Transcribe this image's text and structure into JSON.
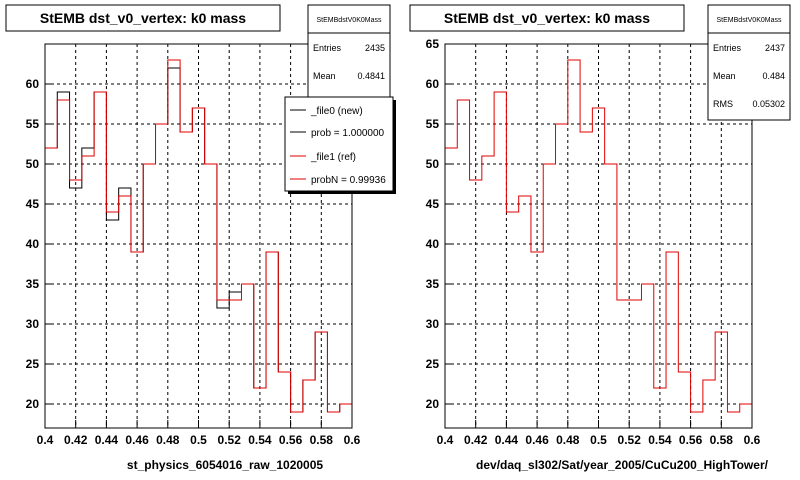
{
  "colors": {
    "new": "#000000",
    "ref": "#e00000"
  },
  "chart_data": [
    {
      "type": "histogram",
      "title": "StEMB dst_v0_vertex: k0 mass",
      "xlabel": "st_physics_6054016_raw_1020005",
      "xlim": [
        0.4,
        0.6
      ],
      "ylim": [
        17,
        65
      ],
      "xticks": [
        "0.4",
        "0.42",
        "0.44",
        "0.46",
        "0.48",
        "0.5",
        "0.52",
        "0.54",
        "0.56",
        "0.58",
        "0.6"
      ],
      "yticks": [
        "20",
        "25",
        "30",
        "35",
        "40",
        "45",
        "50",
        "55",
        "60"
      ],
      "grid": true,
      "bin_edges": [
        0.4,
        0.408,
        0.416,
        0.424,
        0.432,
        0.44,
        0.448,
        0.456,
        0.464,
        0.472,
        0.48,
        0.488,
        0.496,
        0.504,
        0.512,
        0.52,
        0.528,
        0.536,
        0.544,
        0.552,
        0.56,
        0.568,
        0.576,
        0.584,
        0.592,
        0.6
      ],
      "series": [
        {
          "name": "_file0 (new)",
          "color": "#000000",
          "values": [
            52,
            59,
            47,
            52,
            59,
            43,
            47,
            39,
            50,
            55,
            62,
            54,
            57,
            50,
            32,
            34,
            35,
            22,
            39,
            24,
            19,
            23,
            29,
            19,
            20
          ]
        },
        {
          "name": "_file1 (ref)",
          "color": "#e00000",
          "values": [
            52,
            58,
            48,
            51,
            59,
            44,
            46,
            39,
            50,
            55,
            63,
            54,
            57,
            50,
            33,
            33,
            35,
            22,
            39,
            24,
            19,
            23,
            29,
            19,
            20
          ]
        }
      ],
      "stats": {
        "name": "StEMBdstV0K0Mass",
        "entries_label": "Entries",
        "entries": "2435",
        "mean_label": "Mean",
        "mean": "0.4841"
      },
      "legend": {
        "position": "top-right",
        "entries": [
          "_file0 (new)",
          "prob = 1.000000",
          "_file1 (ref)",
          "probN = 0.99936"
        ]
      }
    },
    {
      "type": "histogram",
      "title": "StEMB dst_v0_vertex: k0 mass",
      "xlabel": "dev/daq_sl302/Sat/year_2005/CuCu200_HighTower/",
      "xlim": [
        0.4,
        0.6
      ],
      "ylim": [
        17,
        65
      ],
      "xticks": [
        "0.4",
        "0.42",
        "0.44",
        "0.46",
        "0.48",
        "0.5",
        "0.52",
        "0.54",
        "0.56",
        "0.58",
        "0.6"
      ],
      "yticks": [
        "20",
        "25",
        "30",
        "35",
        "40",
        "45",
        "50",
        "55",
        "60",
        "65"
      ],
      "grid": true,
      "bin_edges": [
        0.4,
        0.408,
        0.416,
        0.424,
        0.432,
        0.44,
        0.448,
        0.456,
        0.464,
        0.472,
        0.48,
        0.488,
        0.496,
        0.504,
        0.512,
        0.52,
        0.528,
        0.536,
        0.544,
        0.552,
        0.56,
        0.568,
        0.576,
        0.584,
        0.592,
        0.6
      ],
      "series": [
        {
          "name": "",
          "color": "#e00000",
          "values": [
            52,
            58,
            48,
            51,
            59,
            44,
            46,
            39,
            50,
            55,
            63,
            54,
            57,
            50,
            33,
            33,
            35,
            22,
            39,
            24,
            19,
            23,
            29,
            19,
            20
          ]
        }
      ],
      "stats": {
        "name": "StEMBdstV0K0Mass",
        "entries_label": "Entries",
        "entries": "2437",
        "mean_label": "Mean",
        "mean": "0.484",
        "rms_label": "RMS",
        "rms": "0.05302"
      }
    }
  ]
}
